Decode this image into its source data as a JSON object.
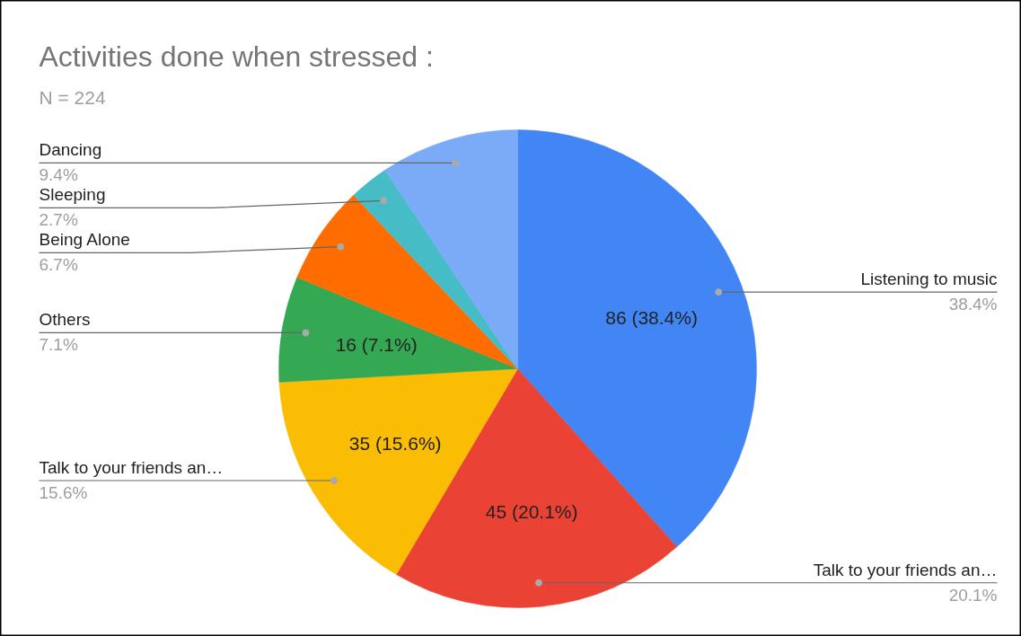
{
  "chart_data": {
    "type": "pie",
    "title": "Activities done when stressed :",
    "subtitle": "N = 224",
    "categories": [
      "Listening to music",
      "Talk to your friends an…",
      "Talk to your friends an…",
      "Others",
      "Being Alone",
      "Sleeping",
      "Dancing"
    ],
    "values": [
      86,
      45,
      35,
      16,
      15,
      6,
      21
    ],
    "colors": [
      "#4285f4",
      "#ea4335",
      "#fbbc04",
      "#34a853",
      "#ff6d01",
      "#46bdc6",
      "#7baaf7"
    ],
    "value_labels": [
      "86 (38.4%)",
      "45 (20.1%)",
      "35 (15.6%)",
      "16 (7.1%)",
      null,
      null,
      null
    ],
    "annotations": [
      "38.4%",
      "20.1%",
      "15.6%",
      "7.1%",
      "6.7%",
      "2.7%",
      "9.4%"
    ]
  }
}
